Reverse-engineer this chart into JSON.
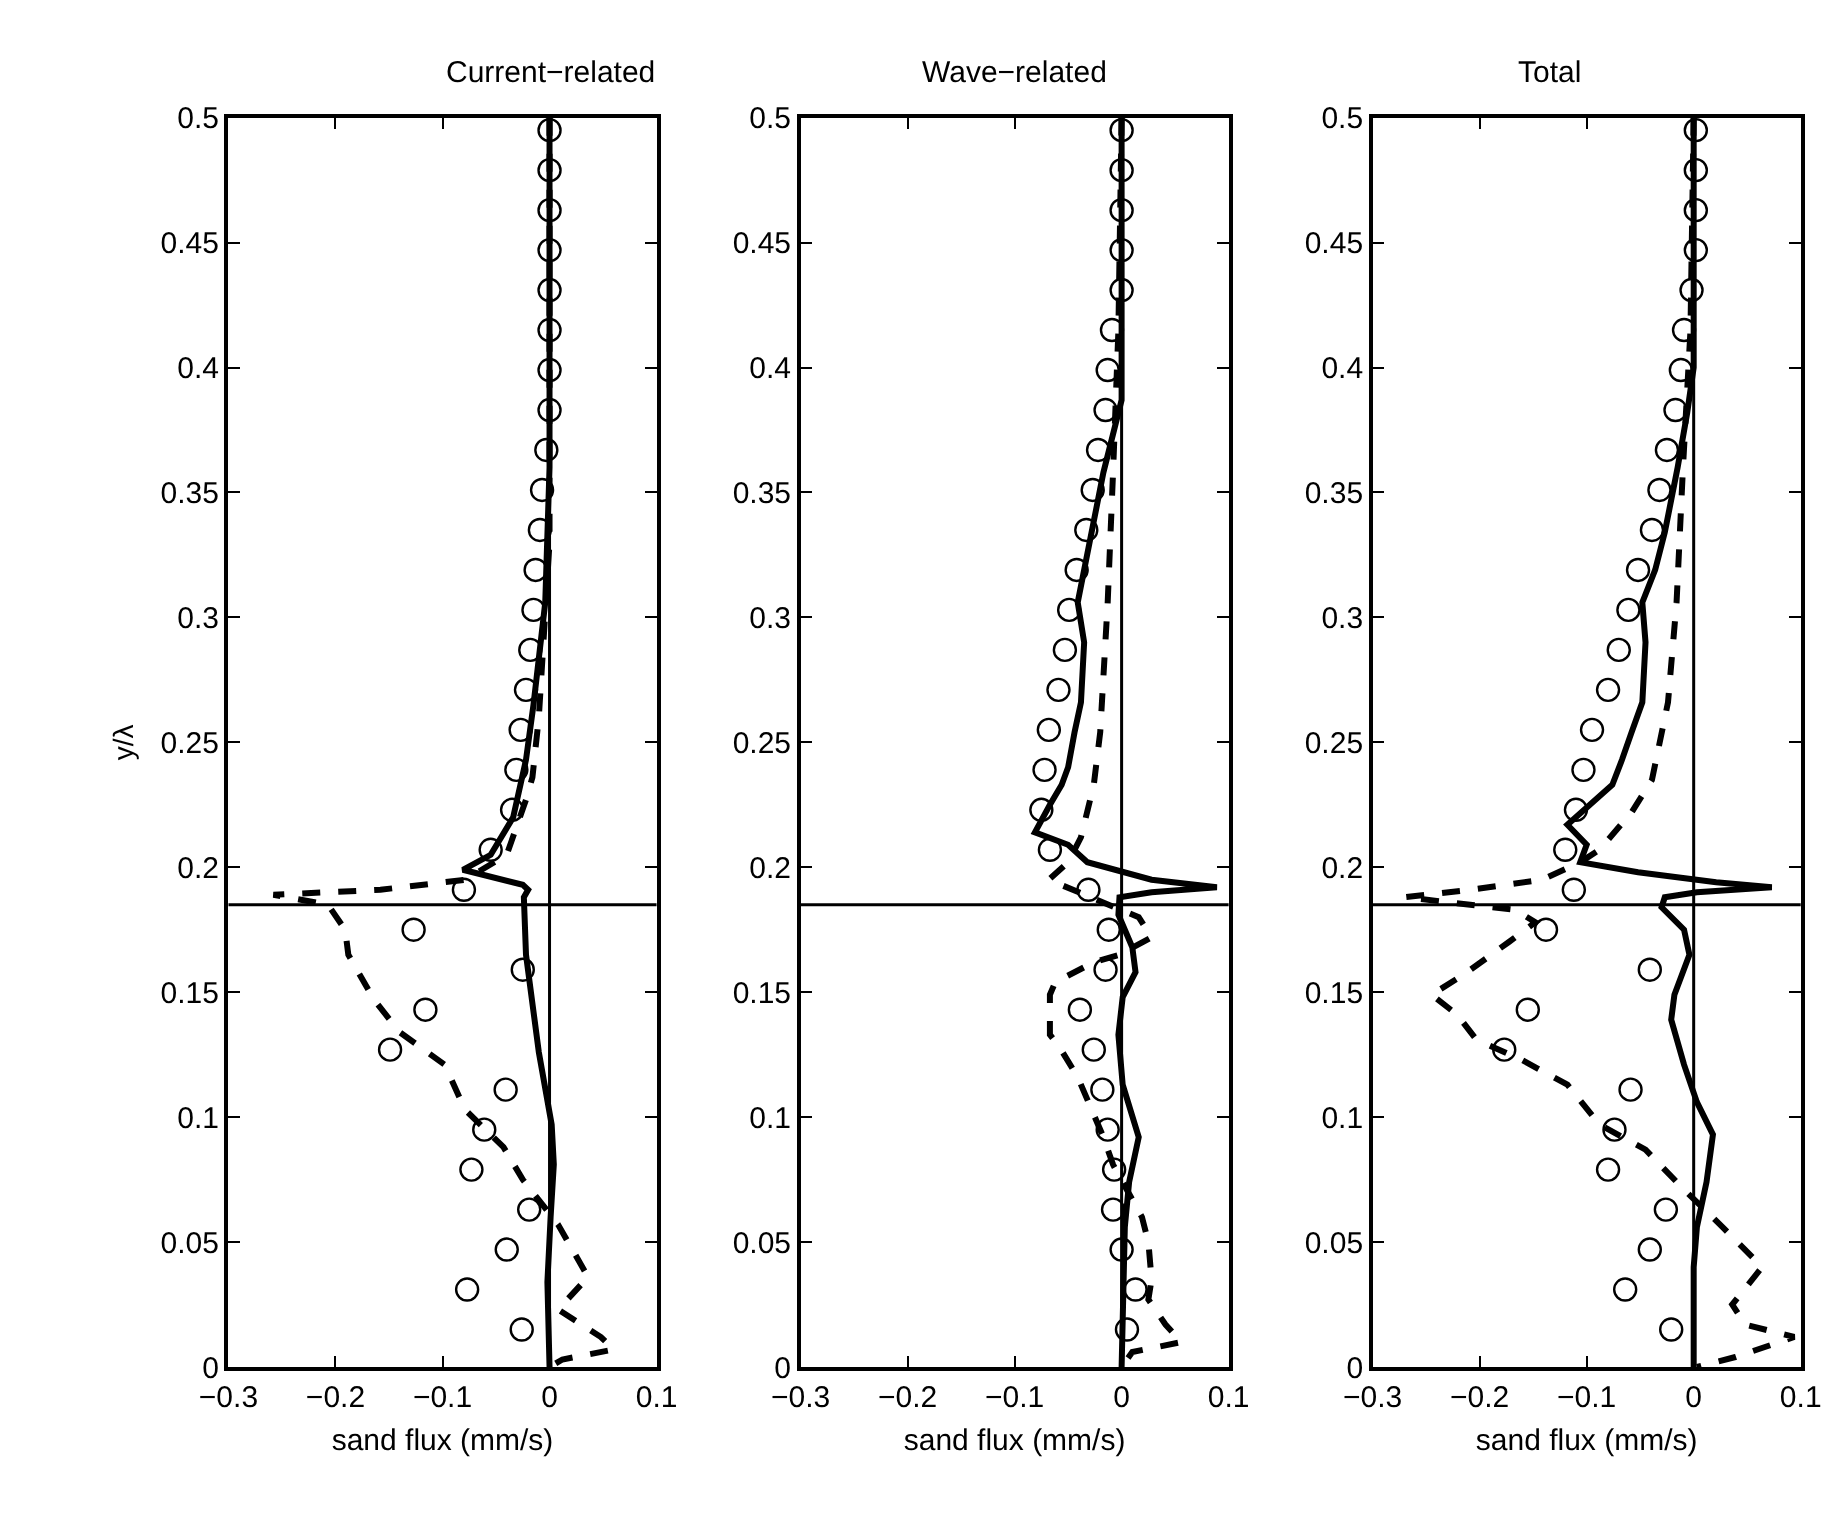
{
  "chart_data": [
    {
      "type": "line",
      "title": "Current−related",
      "ylabel": "y/λ",
      "xlabel": "sand flux (mm/s)",
      "xlim": [
        -0.3,
        0.1
      ],
      "ylim": [
        0,
        0.5
      ],
      "grid": false,
      "xticks": [
        {
          "value": -0.3,
          "label": "−0.3"
        },
        {
          "value": -0.2,
          "label": "−0.2"
        },
        {
          "value": -0.1,
          "label": "−0.1"
        },
        0,
        0.1
      ],
      "yticks": [
        0,
        0.05,
        0.1,
        0.15,
        0.2,
        0.25,
        0.3,
        0.35,
        0.4,
        0.45,
        0.5
      ],
      "ref_lines": [
        {
          "axis": "x",
          "value": 0,
          "color": "#000000"
        },
        {
          "axis": "y",
          "value": 0.185,
          "color": "#000000"
        }
      ],
      "series": [
        {
          "type": "scatter",
          "marker": "circle",
          "color": "#000000",
          "x": [
            0,
            0,
            0,
            0,
            0,
            0,
            0,
            0,
            -0.003,
            -0.007,
            -0.009,
            -0.013,
            -0.015,
            -0.018,
            -0.022,
            -0.027,
            -0.031,
            -0.035,
            -0.055,
            -0.08,
            -0.127,
            -0.025,
            -0.116,
            -0.149,
            -0.041,
            -0.061,
            -0.073,
            -0.019,
            -0.04,
            -0.077,
            -0.026
          ],
          "values": [
            0.495,
            0.479,
            0.463,
            0.447,
            0.431,
            0.415,
            0.399,
            0.383,
            0.367,
            0.351,
            0.335,
            0.319,
            0.303,
            0.287,
            0.271,
            0.255,
            0.239,
            0.223,
            0.207,
            0.191,
            0.175,
            0.159,
            0.143,
            0.127,
            0.111,
            0.095,
            0.079,
            0.063,
            0.047,
            0.031,
            0.015
          ]
        },
        {
          "line_style": "solid",
          "color": "#000000",
          "x": [
            0,
            0,
            -0.004,
            -0.015,
            -0.022,
            -0.034,
            -0.055,
            -0.081,
            -0.025,
            -0.02,
            -0.024,
            -0.022,
            -0.01,
            0.002,
            0.004,
            0.001,
            -0.002,
            0
          ],
          "values": [
            0.5,
            0.36,
            0.306,
            0.265,
            0.243,
            0.22,
            0.205,
            0.199,
            0.193,
            0.191,
            0.188,
            0.165,
            0.126,
            0.097,
            0.081,
            0.06,
            0.034,
            0
          ]
        },
        {
          "line_style": "dashed",
          "color": "#000000",
          "x": [
            0,
            0,
            -0.01,
            -0.016,
            -0.022,
            -0.04,
            -0.079,
            -0.158,
            -0.258,
            -0.207,
            -0.191,
            -0.188,
            -0.164,
            -0.14,
            -0.098,
            -0.079,
            -0.043,
            -0.025,
            0.008,
            0.036,
            0.008,
            0.048,
            0.06,
            0.012,
            0
          ],
          "values": [
            0.5,
            0.33,
            0.26,
            0.236,
            0.227,
            0.205,
            0.195,
            0.191,
            0.189,
            0.185,
            0.175,
            0.165,
            0.147,
            0.134,
            0.121,
            0.103,
            0.088,
            0.075,
            0.057,
            0.036,
            0.023,
            0.012,
            0.007,
            0.003,
            0
          ]
        }
      ]
    },
    {
      "type": "line",
      "title": "Wave−related",
      "xlabel": "sand flux (mm/s)",
      "xlim": [
        -0.3,
        0.1
      ],
      "ylim": [
        0,
        0.5
      ],
      "grid": false,
      "xticks": [
        {
          "value": -0.3,
          "label": "−0.3"
        },
        {
          "value": -0.2,
          "label": "−0.2"
        },
        {
          "value": -0.1,
          "label": "−0.1"
        },
        0,
        0.1
      ],
      "yticks": [
        0,
        0.05,
        0.1,
        0.15,
        0.2,
        0.25,
        0.3,
        0.35,
        0.4,
        0.45,
        0.5
      ],
      "ref_lines": [
        {
          "axis": "x",
          "value": 0,
          "color": "#000000"
        },
        {
          "axis": "y",
          "value": 0.185,
          "color": "#000000"
        }
      ],
      "series": [
        {
          "type": "scatter",
          "marker": "circle",
          "color": "#000000",
          "x": [
            0,
            0,
            0,
            0,
            0,
            -0.009,
            -0.013,
            -0.015,
            -0.022,
            -0.027,
            -0.033,
            -0.042,
            -0.049,
            -0.053,
            -0.059,
            -0.068,
            -0.072,
            -0.075,
            -0.067,
            -0.031,
            -0.012,
            -0.015,
            -0.039,
            -0.026,
            -0.018,
            -0.013,
            -0.007,
            -0.008,
            0,
            0.013,
            0.005
          ],
          "values": [
            0.495,
            0.479,
            0.463,
            0.447,
            0.431,
            0.415,
            0.399,
            0.383,
            0.367,
            0.351,
            0.335,
            0.319,
            0.303,
            0.287,
            0.271,
            0.255,
            0.239,
            0.223,
            0.207,
            0.191,
            0.175,
            0.159,
            0.143,
            0.127,
            0.111,
            0.095,
            0.079,
            0.063,
            0.047,
            0.031,
            0.015
          ]
        },
        {
          "line_style": "solid",
          "color": "#000000",
          "x": [
            0,
            0,
            -0.017,
            -0.035,
            -0.041,
            -0.035,
            -0.038,
            -0.044,
            -0.05,
            -0.056,
            -0.067,
            -0.081,
            -0.05,
            -0.032,
            0.028,
            0.089,
            0.028,
            -0.002,
            -0.003,
            0.01,
            0.013,
            0.001,
            -0.003,
            0.001,
            0.016,
            0.007,
            0.003,
            0
          ],
          "values": [
            0.5,
            0.387,
            0.358,
            0.319,
            0.306,
            0.29,
            0.266,
            0.254,
            0.24,
            0.233,
            0.225,
            0.214,
            0.209,
            0.202,
            0.195,
            0.192,
            0.19,
            0.188,
            0.181,
            0.168,
            0.158,
            0.148,
            0.133,
            0.113,
            0.092,
            0.074,
            0.056,
            0
          ]
        },
        {
          "line_style": "dashed",
          "color": "#000000",
          "x": [
            0,
            -0.003,
            -0.008,
            -0.013,
            -0.02,
            -0.026,
            -0.038,
            -0.05,
            -0.068,
            0.016,
            0.028,
            -0.002,
            -0.026,
            -0.062,
            -0.067,
            -0.067,
            -0.058,
            -0.041,
            -0.032,
            -0.017,
            -0.008,
            0.019,
            0.025,
            0.028,
            0.025,
            0.041,
            0.056,
            0.01,
            0
          ],
          "values": [
            0.5,
            0.415,
            0.358,
            0.306,
            0.254,
            0.233,
            0.212,
            0.202,
            0.195,
            0.18,
            0.172,
            0.165,
            0.162,
            0.154,
            0.149,
            0.133,
            0.128,
            0.116,
            0.107,
            0.092,
            0.081,
            0.06,
            0.05,
            0.035,
            0.027,
            0.017,
            0.01,
            0.006,
            0
          ]
        }
      ]
    },
    {
      "type": "line",
      "title": "Total",
      "xlabel": "sand flux (mm/s)",
      "xlim": [
        -0.3,
        0.1
      ],
      "ylim": [
        0,
        0.5
      ],
      "grid": false,
      "xticks": [
        {
          "value": -0.3,
          "label": "−0.3"
        },
        {
          "value": -0.2,
          "label": "−0.2"
        },
        {
          "value": -0.1,
          "label": "−0.1"
        },
        0,
        0.1
      ],
      "yticks": [
        0,
        0.05,
        0.1,
        0.15,
        0.2,
        0.25,
        0.3,
        0.35,
        0.4,
        0.45,
        0.5
      ],
      "ref_lines": [
        {
          "axis": "x",
          "value": 0,
          "color": "#000000"
        },
        {
          "axis": "y",
          "value": 0.185,
          "color": "#000000"
        }
      ],
      "series": [
        {
          "type": "scatter",
          "marker": "circle",
          "color": "#000000",
          "x": [
            0.002,
            0.002,
            0.002,
            0.002,
            -0.002,
            -0.009,
            -0.012,
            -0.017,
            -0.025,
            -0.032,
            -0.039,
            -0.052,
            -0.061,
            -0.07,
            -0.08,
            -0.095,
            -0.103,
            -0.11,
            -0.12,
            -0.112,
            -0.138,
            -0.041,
            -0.155,
            -0.177,
            -0.059,
            -0.074,
            -0.08,
            -0.026,
            -0.041,
            -0.064,
            -0.021
          ],
          "values": [
            0.495,
            0.479,
            0.463,
            0.447,
            0.431,
            0.415,
            0.399,
            0.383,
            0.367,
            0.351,
            0.335,
            0.319,
            0.303,
            0.287,
            0.271,
            0.255,
            0.239,
            0.223,
            0.207,
            0.191,
            0.175,
            0.159,
            0.143,
            0.127,
            0.111,
            0.095,
            0.079,
            0.063,
            0.047,
            0.031,
            0.015
          ]
        },
        {
          "line_style": "solid",
          "color": "#000000",
          "x": [
            0,
            0,
            -0.006,
            -0.015,
            -0.027,
            -0.036,
            -0.048,
            -0.045,
            -0.048,
            -0.058,
            -0.067,
            -0.076,
            -0.097,
            -0.118,
            -0.1,
            -0.106,
            -0.052,
            0.021,
            0.073,
            0.003,
            -0.027,
            -0.03,
            -0.009,
            -0.004,
            -0.018,
            -0.021,
            -0.009,
            0.003,
            0.018,
            0.012,
            0.003,
            0,
            0
          ],
          "values": [
            0.5,
            0.4,
            0.382,
            0.36,
            0.334,
            0.319,
            0.306,
            0.29,
            0.266,
            0.254,
            0.243,
            0.233,
            0.225,
            0.217,
            0.209,
            0.202,
            0.198,
            0.194,
            0.192,
            0.19,
            0.188,
            0.184,
            0.175,
            0.165,
            0.149,
            0.139,
            0.121,
            0.106,
            0.093,
            0.074,
            0.056,
            0.04,
            0
          ]
        },
        {
          "line_style": "dashed",
          "color": "#000000",
          "x": [
            0,
            -0.003,
            -0.01,
            -0.016,
            -0.024,
            -0.039,
            -0.058,
            -0.088,
            -0.106,
            -0.142,
            -0.209,
            -0.27,
            -0.167,
            -0.148,
            -0.173,
            -0.215,
            -0.245,
            -0.221,
            -0.203,
            -0.161,
            -0.118,
            -0.088,
            -0.045,
            -0.009,
            0.027,
            0.064,
            0.036,
            0.048,
            0.094,
            0.039,
            0.003
          ],
          "values": [
            0.5,
            0.415,
            0.36,
            0.306,
            0.266,
            0.235,
            0.222,
            0.207,
            0.202,
            0.195,
            0.191,
            0.188,
            0.183,
            0.178,
            0.17,
            0.157,
            0.149,
            0.141,
            0.131,
            0.123,
            0.113,
            0.097,
            0.087,
            0.071,
            0.056,
            0.04,
            0.025,
            0.017,
            0.012,
            0.004,
            0
          ]
        }
      ]
    }
  ]
}
